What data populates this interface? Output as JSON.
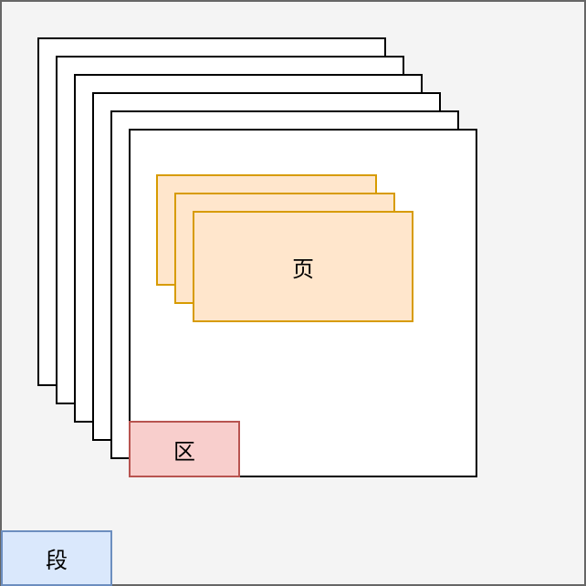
{
  "diagram": {
    "segment": {
      "label": "段",
      "fill": "#dae8fc",
      "stroke": "#6c8ebf"
    },
    "extent": {
      "label": "区",
      "fill": "#f8cecc",
      "stroke": "#b85450"
    },
    "page": {
      "label": "页",
      "fill": "#ffe6cc",
      "stroke": "#d79b00"
    },
    "stack_count": 6,
    "page_stack_count": 3
  }
}
